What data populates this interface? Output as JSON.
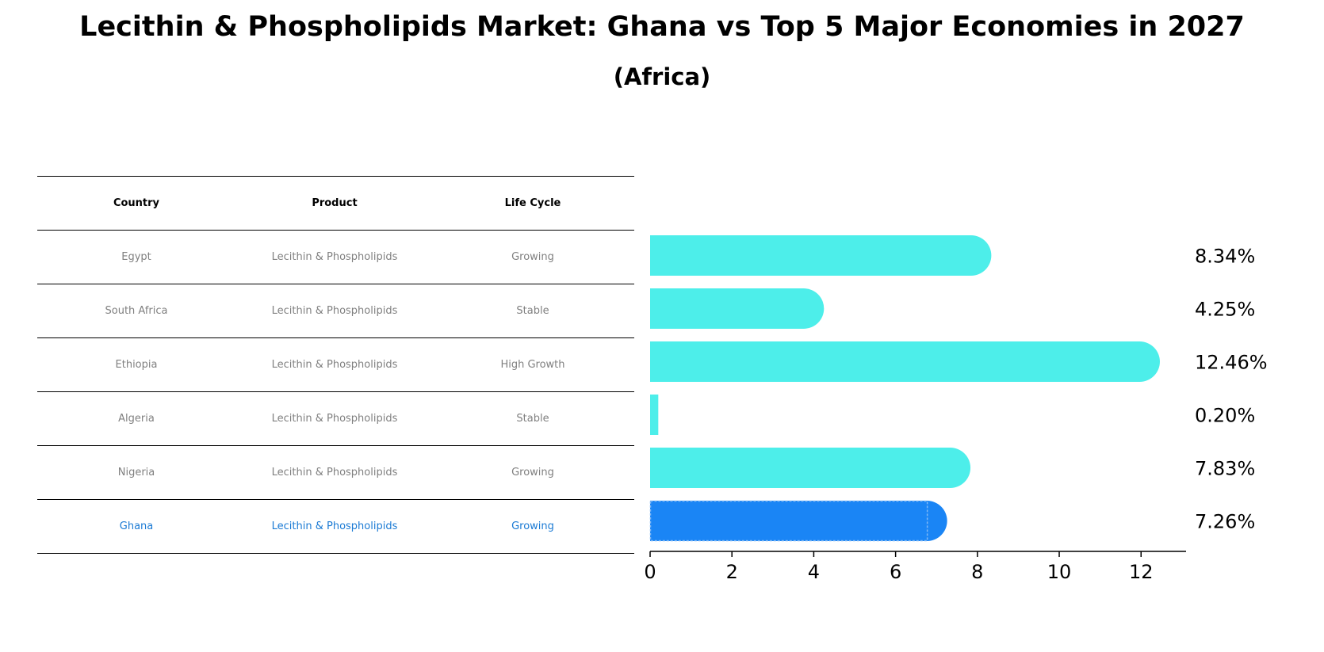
{
  "title": "Lecithin & Phospholipids Market: Ghana vs Top 5 Major Economies in 2027",
  "subtitle": "(Africa)",
  "table": {
    "headers": [
      "Country",
      "Product",
      "Life Cycle"
    ],
    "rows": [
      {
        "country": "Egypt",
        "product": "Lecithin & Phospholipids",
        "life_cycle": "Growing"
      },
      {
        "country": "South Africa",
        "product": "Lecithin & Phospholipids",
        "life_cycle": "Stable"
      },
      {
        "country": "Ethiopia",
        "product": "Lecithin & Phospholipids",
        "life_cycle": "High Growth"
      },
      {
        "country": "Algeria",
        "product": "Lecithin & Phospholipids",
        "life_cycle": "Stable"
      },
      {
        "country": "Nigeria",
        "product": "Lecithin & Phospholipids",
        "life_cycle": "Growing"
      },
      {
        "country": "Ghana",
        "product": "Lecithin & Phospholipids",
        "life_cycle": "Growing"
      }
    ]
  },
  "chart_data": {
    "type": "bar",
    "orientation": "horizontal",
    "categories": [
      "Egypt",
      "South Africa",
      "Ethiopia",
      "Algeria",
      "Nigeria",
      "Ghana"
    ],
    "values": [
      8.34,
      4.25,
      12.46,
      0.2,
      7.83,
      7.26
    ],
    "value_labels": [
      "8.34%",
      "4.25%",
      "12.46%",
      "0.20%",
      "7.83%",
      "7.26%"
    ],
    "highlight": "Ghana",
    "xlim": [
      0,
      13.1
    ],
    "xticks": [
      0,
      2,
      4,
      6,
      8,
      10,
      12
    ],
    "grid": false,
    "colors": {
      "default": "#4deeea",
      "highlight": "#1a85f5"
    }
  }
}
